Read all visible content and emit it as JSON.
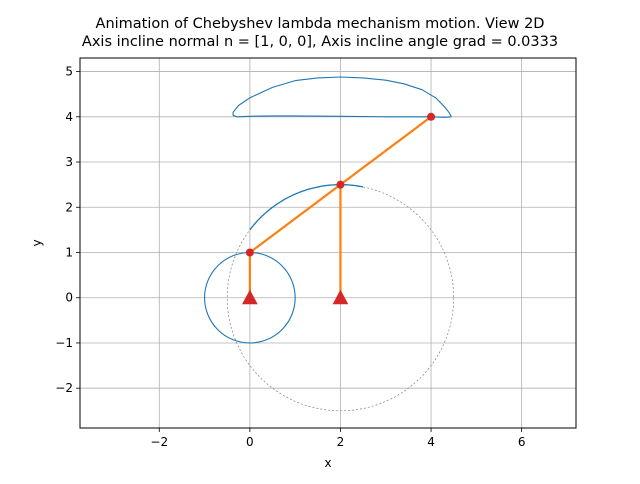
{
  "chart_data": {
    "type": "line",
    "title_line1": "Animation of Chebyshev lambda mechanism motion. View 2D",
    "title_line2": "Axis incline normal n = [1, 0, 0], Axis incline angle grad = 0.0333",
    "xlabel": "x",
    "ylabel": "y",
    "xlim": [
      -3.75,
      7.2
    ],
    "ylim": [
      -2.88,
      5.3
    ],
    "x_ticks": [
      -2,
      0,
      2,
      4,
      6
    ],
    "y_ticks": [
      -2,
      -1,
      0,
      1,
      2,
      3,
      4,
      5
    ],
    "grid": true,
    "colors": {
      "trace": "#1f77b4",
      "links": "#ff7f0e",
      "joints": "#d62728",
      "guide_circle": "#808080",
      "grid": "#b0b0b0"
    },
    "crank_circle": {
      "center": [
        0,
        0
      ],
      "radius": 1
    },
    "rocker_circle": {
      "center": [
        2,
        0
      ],
      "radius": 2.5
    },
    "coupler_arc": {
      "center": [
        2,
        0
      ],
      "radius": 2.5,
      "from_point": [
        0,
        1.5
      ],
      "to_point": [
        2.5,
        2.45
      ]
    },
    "end_effector_path": [
      [
        4.45,
        4.0
      ],
      [
        4.4,
        4.09
      ],
      [
        4.3,
        4.22
      ],
      [
        4.1,
        4.42
      ],
      [
        3.8,
        4.6
      ],
      [
        3.4,
        4.73
      ],
      [
        3.0,
        4.81
      ],
      [
        2.5,
        4.86
      ],
      [
        2.0,
        4.88
      ],
      [
        1.5,
        4.86
      ],
      [
        1.0,
        4.8
      ],
      [
        0.5,
        4.65
      ],
      [
        0.0,
        4.42
      ],
      [
        -0.25,
        4.25
      ],
      [
        -0.37,
        4.1
      ],
      [
        -0.37,
        4.03
      ],
      [
        -0.28,
        4.0
      ],
      [
        0.0,
        4.01
      ],
      [
        0.5,
        4.02
      ],
      [
        1.0,
        4.02
      ],
      [
        2.0,
        4.01
      ],
      [
        3.0,
        4.0
      ],
      [
        3.5,
        4.0
      ],
      [
        4.0,
        4.0
      ],
      [
        4.3,
        3.99
      ],
      [
        4.45,
        4.0
      ]
    ],
    "links": [
      {
        "from": [
          0,
          0
        ],
        "to": [
          0,
          1
        ]
      },
      {
        "from": [
          0,
          1
        ],
        "to": [
          2,
          2.5
        ]
      },
      {
        "from": [
          2,
          2.5
        ],
        "to": [
          4,
          4
        ]
      },
      {
        "from": [
          2,
          0
        ],
        "to": [
          2,
          2.5
        ]
      }
    ],
    "joints": [
      [
        0,
        1
      ],
      [
        2,
        2.5
      ],
      [
        4,
        4
      ]
    ],
    "ground_supports": [
      [
        0,
        0
      ],
      [
        2,
        0
      ]
    ]
  }
}
